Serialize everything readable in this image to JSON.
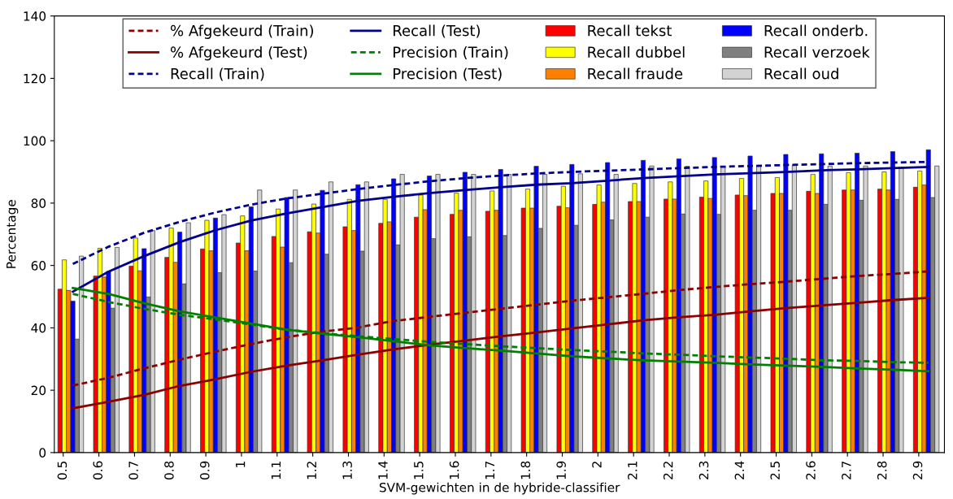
{
  "chart_data": {
    "type": "bar",
    "xlabel": "SVM-gewichten in de hybride-classifier",
    "ylabel": "Percentage",
    "categories": [
      "0.5",
      "0.6",
      "0.7",
      "0.8",
      "0.9",
      "1",
      "1.1",
      "1.2",
      "1.3",
      "1.4",
      "1.5",
      "1.6",
      "1.7",
      "1.8",
      "1.9",
      "2",
      "2.1",
      "2.2",
      "2.3",
      "2.4",
      "2.5",
      "2.6",
      "2.7",
      "2.8",
      "2.9"
    ],
    "ylim": [
      0,
      140
    ],
    "yticks": [
      0,
      20,
      40,
      60,
      80,
      100,
      120,
      140
    ],
    "grid": false,
    "legend": "top",
    "series": [
      {
        "name": "% Afgekeurd (Train)",
        "type": "line",
        "line_style": "dashed",
        "color": "#8b0000",
        "values": [
          21.5,
          24.0,
          27.0,
          29.8,
          32.4,
          34.8,
          37.0,
          38.8,
          40.1,
          42.2,
          43.5,
          44.8,
          46.1,
          47.4,
          48.7,
          49.8,
          50.9,
          52.1,
          53.1,
          54.0,
          54.8,
          55.7,
          56.6,
          57.3,
          58.1
        ]
      },
      {
        "name": "% Afgekeurd (Test)",
        "type": "line",
        "line_style": "solid",
        "color": "#8b0000",
        "values": [
          14.2,
          16.3,
          18.5,
          21.4,
          23.5,
          25.9,
          27.9,
          29.6,
          31.4,
          33.1,
          34.6,
          35.9,
          37.3,
          38.5,
          39.8,
          41.1,
          42.4,
          43.4,
          44.2,
          45.3,
          46.3,
          47.2,
          48.0,
          48.9,
          49.6
        ]
      },
      {
        "name": "Recall (Train)",
        "type": "line",
        "line_style": "dashed",
        "color": "#00008b",
        "values": [
          60.5,
          66.0,
          70.5,
          74.0,
          77.0,
          79.5,
          81.5,
          83.0,
          84.5,
          85.8,
          87.0,
          88.0,
          88.8,
          89.5,
          90.0,
          90.4,
          90.8,
          91.2,
          91.6,
          91.9,
          92.2,
          92.5,
          92.8,
          93.0,
          93.2
        ]
      },
      {
        "name": "Recall (Test)",
        "type": "line",
        "line_style": "solid",
        "color": "#00008b",
        "values": [
          51.6,
          58.0,
          63.0,
          67.5,
          71.3,
          74.4,
          76.7,
          78.7,
          80.7,
          82.0,
          83.2,
          84.2,
          85.1,
          85.9,
          86.4,
          87.2,
          88.0,
          88.6,
          89.2,
          89.6,
          90.0,
          90.5,
          90.8,
          91.2,
          91.6
        ]
      },
      {
        "name": "Precision (Train)",
        "type": "line",
        "line_style": "dashed",
        "color": "#008000",
        "values": [
          50.9,
          48.3,
          46.1,
          44.2,
          42.7,
          41.1,
          39.4,
          38.3,
          37.3,
          36.4,
          35.5,
          34.8,
          34.1,
          33.5,
          32.9,
          32.4,
          31.8,
          31.4,
          30.9,
          30.5,
          30.1,
          29.6,
          29.4,
          29.0,
          28.8
        ]
      },
      {
        "name": "Precision (Test)",
        "type": "line",
        "line_style": "solid",
        "color": "#008000",
        "values": [
          52.8,
          50.9,
          47.9,
          45.3,
          43.3,
          41.4,
          39.4,
          38.1,
          37.0,
          35.7,
          34.4,
          33.5,
          32.7,
          31.8,
          30.9,
          30.2,
          29.6,
          29.2,
          28.8,
          28.3,
          27.9,
          27.5,
          27.0,
          26.6,
          26.1
        ]
      },
      {
        "name": "Recall tekst",
        "color": "#ff0000",
        "values": [
          52.4,
          56.6,
          59.8,
          62.6,
          65.3,
          67.2,
          69.3,
          70.8,
          72.4,
          73.5,
          75.5,
          76.4,
          77.4,
          78.4,
          79.0,
          79.6,
          80.5,
          81.3,
          81.9,
          82.6,
          83.1,
          83.8,
          84.2,
          84.5,
          85.1
        ]
      },
      {
        "name": "Recall dubbel",
        "color": "#ffff00",
        "values": [
          61.8,
          65.5,
          68.8,
          72.0,
          74.5,
          75.9,
          78.1,
          79.7,
          81.2,
          81.2,
          82.6,
          83.2,
          83.9,
          84.5,
          85.4,
          85.8,
          86.3,
          86.8,
          87.1,
          87.9,
          88.2,
          89.2,
          89.8,
          90.0,
          90.3
        ]
      },
      {
        "name": "Recall fraude",
        "color": "#ff8000",
        "values": [
          52.0,
          56.3,
          58.3,
          61.0,
          64.7,
          64.7,
          65.9,
          70.4,
          71.2,
          74.0,
          77.9,
          77.7,
          77.7,
          78.4,
          78.5,
          80.3,
          80.5,
          81.3,
          81.5,
          82.4,
          83.1,
          83.1,
          84.2,
          84.2,
          85.8
        ]
      },
      {
        "name": "Recall onderb.",
        "color": "#0000ff",
        "values": [
          48.6,
          58.1,
          65.4,
          70.7,
          75.2,
          78.8,
          81.8,
          84.1,
          85.9,
          87.8,
          88.7,
          89.9,
          90.8,
          91.8,
          92.4,
          93.0,
          93.7,
          94.2,
          94.6,
          95.1,
          95.6,
          95.8,
          96.0,
          96.5,
          97.1
        ]
      },
      {
        "name": "Recall verzoek",
        "color": "#808080",
        "values": [
          36.4,
          46.3,
          49.9,
          54.1,
          57.7,
          58.2,
          60.9,
          63.6,
          64.6,
          66.6,
          68.6,
          69.2,
          69.6,
          71.9,
          72.9,
          74.6,
          75.5,
          76.5,
          76.4,
          77.7,
          77.7,
          79.6,
          80.9,
          81.2,
          81.8
        ]
      },
      {
        "name": "Recall oud",
        "color": "#d3d3d3",
        "values": [
          63.0,
          65.8,
          71.2,
          73.7,
          76.3,
          84.2,
          84.2,
          86.8,
          86.8,
          89.2,
          89.2,
          89.2,
          89.2,
          89.2,
          89.4,
          89.2,
          91.9,
          91.8,
          91.6,
          91.9,
          92.2,
          91.9,
          91.9,
          91.5,
          91.9
        ]
      }
    ]
  }
}
